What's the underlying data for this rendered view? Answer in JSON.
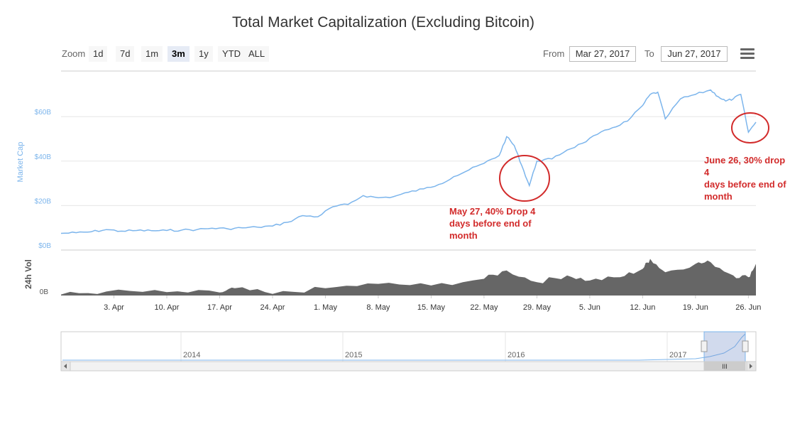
{
  "chart_data": {
    "type": "area",
    "title": "Total Market Capitalization (Excluding Bitcoin)",
    "ylabel": "Market Cap",
    "vol_label": "24h Vol",
    "yticks": [
      "$0B",
      "$20B",
      "$40B",
      "$60B"
    ],
    "ylim": [
      0,
      80
    ],
    "vol_tick": "0B",
    "xticks": [
      "3. Apr",
      "10. Apr",
      "17. Apr",
      "24. Apr",
      "1. May",
      "8. May",
      "15. May",
      "22. May",
      "29. May",
      "5. Jun",
      "12. Jun",
      "19. Jun",
      "26. Jun"
    ],
    "x_start": "2017-03-27",
    "series": [
      {
        "x": [
          "2017-03-27",
          "2017-03-29",
          "2017-03-31",
          "2017-04-02",
          "2017-04-04",
          "2017-04-06",
          "2017-04-08",
          "2017-04-10",
          "2017-04-12",
          "2017-04-14",
          "2017-04-16",
          "2017-04-18",
          "2017-04-20",
          "2017-04-22",
          "2017-04-24",
          "2017-04-26",
          "2017-04-28",
          "2017-04-30",
          "2017-05-02",
          "2017-05-04",
          "2017-05-06",
          "2017-05-08",
          "2017-05-10",
          "2017-05-12",
          "2017-05-14",
          "2017-05-16",
          "2017-05-18",
          "2017-05-20",
          "2017-05-22",
          "2017-05-24",
          "2017-05-25",
          "2017-05-26",
          "2017-05-27",
          "2017-05-28",
          "2017-05-29",
          "2017-05-31",
          "2017-06-02",
          "2017-06-04",
          "2017-06-06",
          "2017-06-08",
          "2017-06-10",
          "2017-06-12",
          "2017-06-13",
          "2017-06-14",
          "2017-06-15",
          "2017-06-17",
          "2017-06-19",
          "2017-06-21",
          "2017-06-22",
          "2017-06-23",
          "2017-06-24",
          "2017-06-25",
          "2017-06-26",
          "2017-06-27"
        ],
        "values": [
          7.5,
          7.8,
          8.2,
          9.2,
          8.5,
          8.8,
          8.7,
          8.8,
          9.0,
          9.2,
          9.8,
          9.6,
          10.0,
          10.3,
          10.8,
          12.5,
          15.5,
          15.0,
          19.5,
          20.5,
          24.5,
          23.5,
          24.0,
          26.0,
          27.5,
          29.5,
          33.0,
          36.0,
          39.0,
          42.5,
          51.0,
          47.0,
          38.0,
          29.0,
          40.0,
          41.0,
          45.0,
          48.0,
          52.0,
          55.0,
          58.0,
          65.0,
          70.0,
          71.0,
          59.0,
          68.0,
          70.0,
          72.0,
          69.0,
          67.0,
          68.0,
          70.0,
          53.0,
          57.5
        ]
      }
    ],
    "volume": {
      "x": [
        "2017-03-27",
        "2017-04-02",
        "2017-04-10",
        "2017-04-17",
        "2017-04-19",
        "2017-04-24",
        "2017-05-01",
        "2017-05-08",
        "2017-05-15",
        "2017-05-22",
        "2017-05-25",
        "2017-05-29",
        "2017-06-02",
        "2017-06-05",
        "2017-06-09",
        "2017-06-12",
        "2017-06-13",
        "2017-06-15",
        "2017-06-19",
        "2017-06-21",
        "2017-06-24",
        "2017-06-26",
        "2017-06-27"
      ],
      "values": [
        0.3,
        1.2,
        1.0,
        0.9,
        2.2,
        0.5,
        2.2,
        3.5,
        3.0,
        5.0,
        7.5,
        4.0,
        6.0,
        4.5,
        5.5,
        8.0,
        11.0,
        7.0,
        9.5,
        10.0,
        6.0,
        5.5,
        9.5
      ]
    },
    "navigator": {
      "labels": [
        "2014",
        "2015",
        "2016",
        "2017"
      ]
    },
    "annotations": [
      {
        "label": "May 27, 40% Drop 4 days before end of month",
        "lines": [
          "May 27, 40% Drop 4",
          "days before end of",
          "month"
        ],
        "x": "2017-05-27"
      },
      {
        "label": "June 26, 30% drop 4 days before end of month",
        "lines": [
          "June 26, 30% drop 4",
          "days before end of",
          "month"
        ],
        "x": "2017-06-26"
      }
    ],
    "colors": {
      "line": "#7cb5ec",
      "volume": "#666666",
      "annotation": "#d22b2b",
      "grid": "#e6e6e6"
    }
  },
  "toolbar": {
    "zoom_label": "Zoom",
    "zoom_buttons": [
      "1d",
      "7d",
      "1m",
      "3m",
      "1y",
      "YTD",
      "ALL"
    ],
    "active_zoom": "3m",
    "from_label": "From",
    "from_value": "Mar 27, 2017",
    "to_label": "To",
    "to_value": "Jun 27, 2017",
    "menu_icon": "hamburger-menu-icon"
  },
  "scrollbar": {
    "grip": "III"
  }
}
